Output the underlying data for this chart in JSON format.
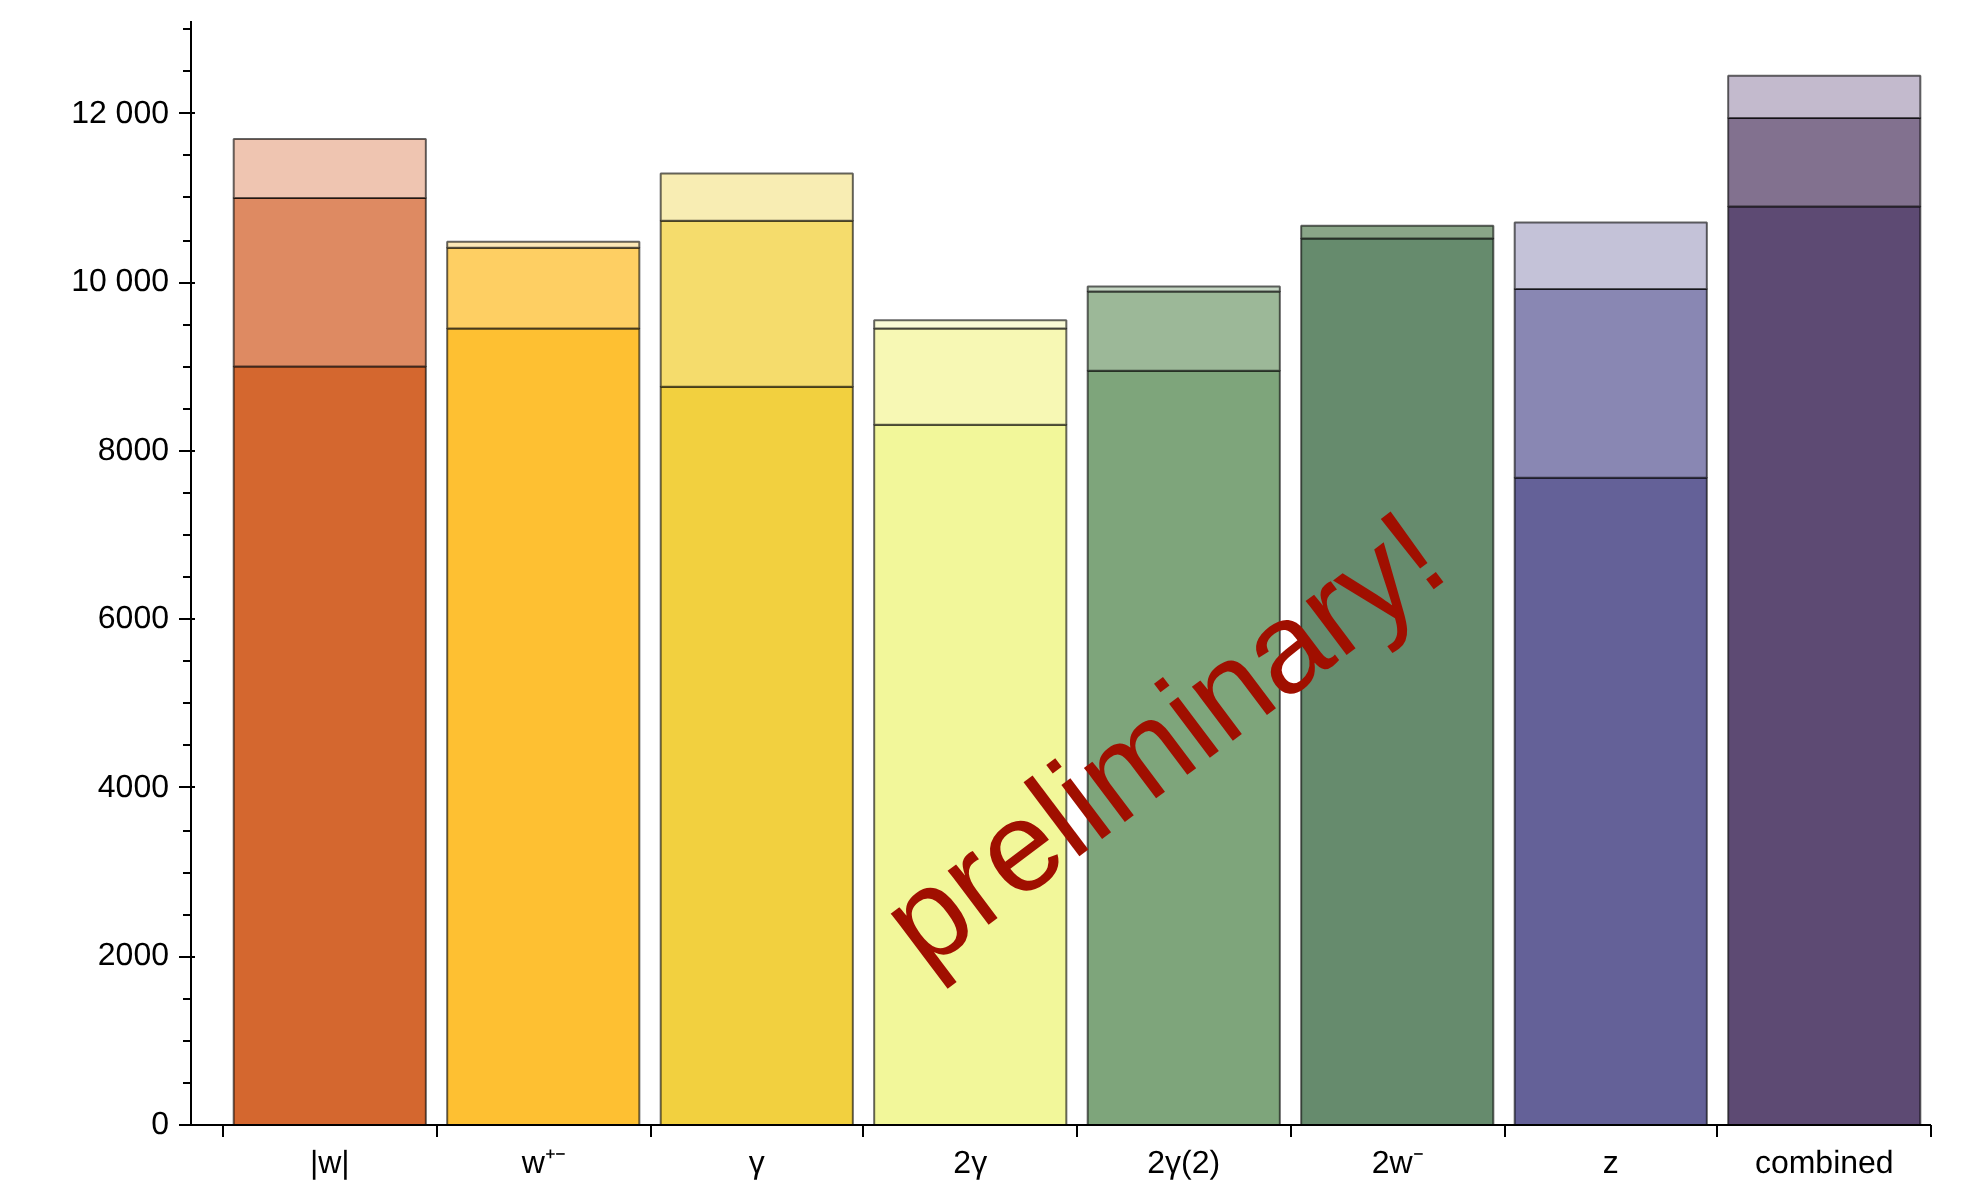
{
  "chart_data": {
    "type": "bar",
    "stacked": true,
    "grid": false,
    "categories": [
      "|w|",
      "w⁺⁻",
      "γ",
      "2γ",
      "2γ(2)",
      "2w⁻",
      "z",
      "combined"
    ],
    "series": [
      {
        "colors": [
          "#d4672f",
          "#fec032",
          "#f2d03f",
          "#f2f79a",
          "#7ea57b",
          "#668b6d",
          "#646198",
          "#5d4a73"
        ],
        "values": [
          9000,
          9450,
          8760,
          8310,
          8950,
          10520,
          7680,
          10900
        ]
      },
      {
        "colors": [
          "#de8a62",
          "#fecf63",
          "#f5dc6c",
          "#f7f8b4",
          "#9cb898",
          "#8aa688",
          "#8987b3",
          "#82718f"
        ],
        "values": [
          2000,
          960,
          1970,
          1140,
          940,
          150,
          2240,
          1050
        ]
      },
      {
        "colors": [
          "#efc5b1",
          "#fde9b7",
          "#f8edb3",
          "#fafbd6",
          "#c5d6c3",
          "#9db89a",
          "#c4c2d8",
          "#c3bacd"
        ],
        "values": [
          700,
          70,
          560,
          100,
          60,
          null,
          790,
          500
        ]
      }
    ],
    "ylim": [
      0,
      13100
    ],
    "yticks": [
      0,
      2000,
      4000,
      6000,
      8000,
      {
        "value": 10000,
        "label": "10 000"
      },
      {
        "value": 12000,
        "label": "12 000"
      }
    ],
    "annotations": [
      "preliminary!"
    ]
  }
}
